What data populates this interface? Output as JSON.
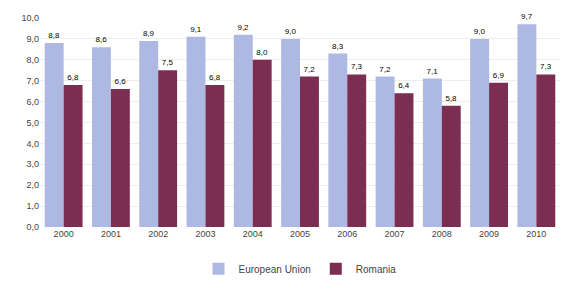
{
  "chart_data": {
    "type": "bar",
    "categories": [
      "2000",
      "2001",
      "2002",
      "2003",
      "2004",
      "2005",
      "2006",
      "2007",
      "2008",
      "2009",
      "2010"
    ],
    "series": [
      {
        "name": "European Union",
        "color": "#adb9e3",
        "values": [
          8.8,
          8.6,
          8.9,
          9.1,
          9.2,
          9.0,
          8.3,
          7.2,
          7.1,
          9.0,
          9.7
        ],
        "value_labels": [
          "8,8",
          "8,6",
          "8,9",
          "9,1",
          "9,2",
          "9,0",
          "8,3",
          "7,2",
          "7,1",
          "9,0",
          "9,7"
        ]
      },
      {
        "name": "Romania",
        "color": "#7b2d52",
        "values": [
          6.8,
          6.6,
          7.5,
          6.8,
          8.0,
          7.2,
          7.3,
          6.4,
          5.8,
          6.9,
          7.3
        ],
        "value_labels": [
          "6,8",
          "6,6",
          "7,5",
          "6,8",
          "8,0",
          "7,2",
          "7,3",
          "6,4",
          "5,8",
          "6,9",
          "7,3"
        ]
      }
    ],
    "ylim": [
      0,
      10.0
    ],
    "yticks": [
      {
        "value": 0.0,
        "label": "0,0"
      },
      {
        "value": 1.0,
        "label": "1,0"
      },
      {
        "value": 2.0,
        "label": "2,0"
      },
      {
        "value": 3.0,
        "label": "3,0"
      },
      {
        "value": 4.0,
        "label": "4,0"
      },
      {
        "value": 5.0,
        "label": "5,0"
      },
      {
        "value": 6.0,
        "label": "6,0"
      },
      {
        "value": 7.0,
        "label": "7,0"
      },
      {
        "value": 8.0,
        "label": "8,0"
      },
      {
        "value": 9.0,
        "label": "9,0"
      },
      {
        "value": 10.0,
        "label": "10,0"
      }
    ],
    "grid": true,
    "legend": "bottom",
    "data_labels": true
  }
}
